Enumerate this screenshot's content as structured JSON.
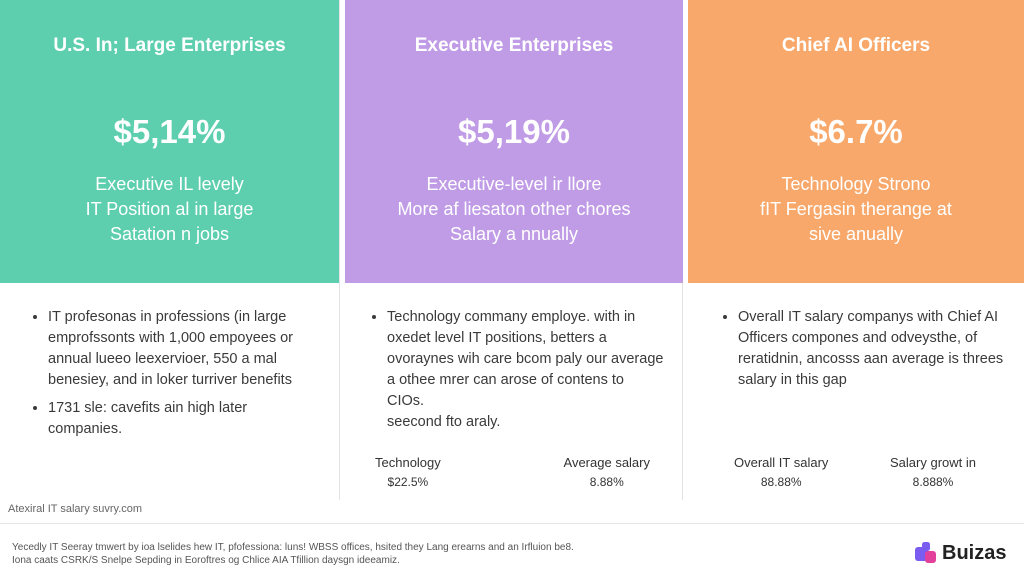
{
  "cards": [
    {
      "color": "#5ecfae",
      "title": "U.S. In; Large Enterprises",
      "value": "$5,14%",
      "description": [
        "Executive IL levely",
        "IT Position al in large",
        "Satation n jobs"
      ],
      "bullets": [
        "IT profesonas in professions (in large emprofssonts with 1,000 empoyees or annual lueeo leexervioer, 550 a mal benesiey, and in loker turriver benefits",
        "1731 sle: cavefits ain high later companies."
      ],
      "stats": []
    },
    {
      "color": "#c09ce6",
      "title": "Executive Enterprises",
      "value": "$5,19%",
      "description": [
        "Executive-level ir llore",
        "More af liesaton other chores",
        "Salary a nnually"
      ],
      "bullets": [
        "Technology commany employe. with in oxedet level IT positions, betters a ovoraynes wih care bcom paly our average a othee mrer can arose of contens to CIOs."
      ],
      "extra_line": "seecond fto araly.",
      "stats": [
        {
          "label": "Technology",
          "value": "$22.5%"
        },
        {
          "label": "Average salary",
          "value": "8.88%"
        }
      ]
    },
    {
      "color": "#f8a86a",
      "title": "Chief AI Officers",
      "value": "$6.7%",
      "description": [
        "Technology Strono",
        "fIT Fergasin therange at",
        "sive anually"
      ],
      "bullets": [
        "Overall IT salary companys with Chief AI Officers compones and odveysthe, of reratidnin, ancosss aan average is threes salary in this gap"
      ],
      "stats": [
        {
          "label": "Overall IT salary",
          "value": "88.88%"
        },
        {
          "label": "Salary growt in",
          "value": "8.888%"
        }
      ]
    }
  ],
  "source": "Atexiral IT salary suvry.com",
  "footnote": [
    "Yecedly IT Seeray tmwert by ioa lselides hew IT, pfofessiona: luns! WBSS offices, hsited they Lang erearns and an Irfluion be8.",
    "Iona caats CSRK/S Snelpe Sepding in Eoroftres og Chlice AIA Tfillion daysgn ideeamiz."
  ],
  "brand": {
    "name": "Buizas",
    "color": "#7b5cf0",
    "accent": "#e2409a",
    "icon": "puzzle-icon"
  }
}
